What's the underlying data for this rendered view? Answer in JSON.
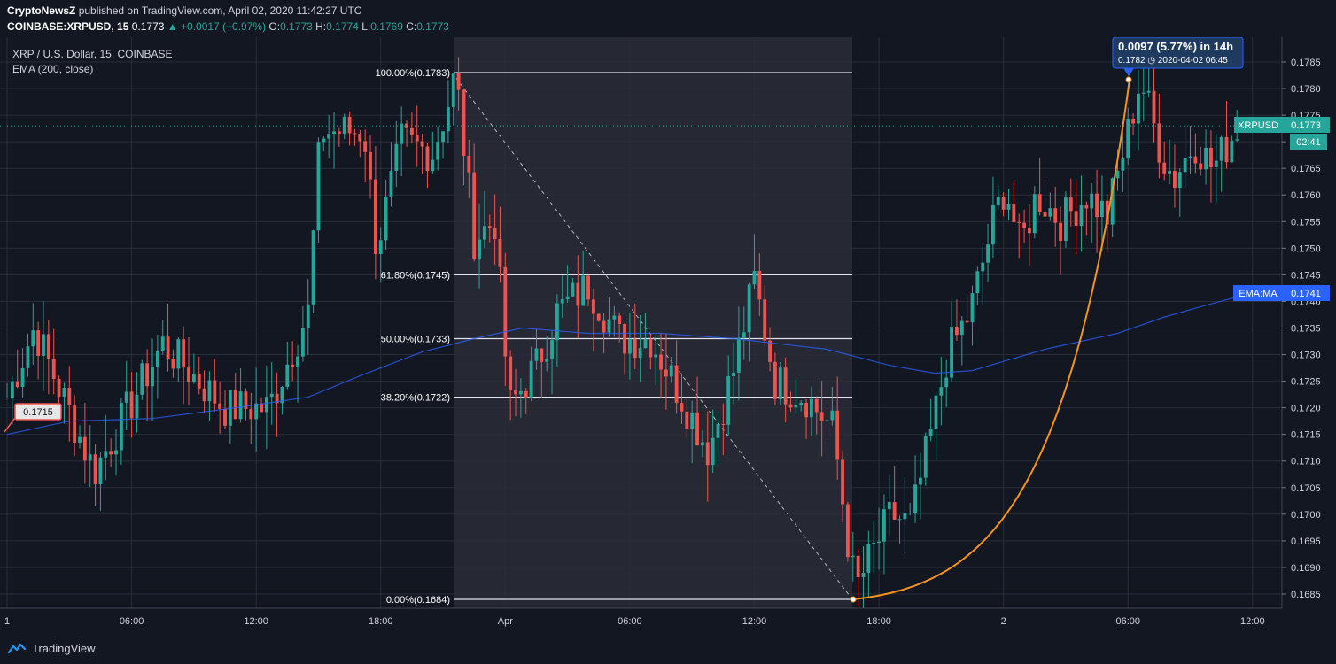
{
  "header": {
    "publisher": "CryptoNewsZ",
    "published_text": "published on TradingView.com, April 02, 2020 11:42:27 UTC",
    "symbol_line": "COINBASE:XRPUSD, 15",
    "last": "0.1773",
    "change": "+0.0017 (+0.97%)",
    "o_label": "O:",
    "o": "0.1773",
    "h_label": "H:",
    "h": "0.1774",
    "l_label": "L:",
    "l": "0.1769",
    "c_label": "C:",
    "c": "0.1773"
  },
  "legend": {
    "series_title": "XRP / U.S. Dollar, 15, COINBASE",
    "indicator": "EMA (200, close)"
  },
  "tags": {
    "xrpusd_label": "XRPUSD",
    "xrpusd_value": "0.1773",
    "countdown": "02:41",
    "ema_label": "EMA:MA",
    "ema_value": "0.1741",
    "left_price": "0.1715"
  },
  "measure": {
    "line1": "0.0097 (5.77%) in 14h",
    "line2": "0.1782 ◷ 2020-04-02  06:45"
  },
  "fib": {
    "levels": [
      {
        "label": "100.00%(0.1783)",
        "price": 0.1783
      },
      {
        "label": "61.80%(0.1745)",
        "price": 0.1745
      },
      {
        "label": "50.00%(0.1733)",
        "price": 0.1733
      },
      {
        "label": "38.20%(0.1722)",
        "price": 0.1722
      },
      {
        "label": "0.00%(0.1684)",
        "price": 0.1684
      }
    ]
  },
  "footer": {
    "logo_text": "TradingView"
  },
  "colors": {
    "background": "#131722",
    "grid": "#2a2e39",
    "up": "#26a69a",
    "down": "#ef5350",
    "ema": "#2962ff",
    "fib_line": "#e0e3eb",
    "curve": "#f7931a",
    "measure_bg": "#1e4a7a",
    "measure_border": "#2962ff"
  },
  "chart_data": {
    "type": "candlestick",
    "title": "XRP / U.S. Dollar, 15, COINBASE",
    "y_ticks": [
      0.1685,
      0.169,
      0.1695,
      0.17,
      0.1705,
      0.171,
      0.1715,
      0.172,
      0.1725,
      0.173,
      0.1735,
      0.174,
      0.1745,
      0.175,
      0.1755,
      0.176,
      0.1765,
      0.177,
      0.1775,
      0.178,
      0.1785
    ],
    "y_tick_labels": [
      "0.1685",
      "0.1690",
      "0.1695",
      "0.1700",
      "0.1705",
      "0.1710",
      "0.1715",
      "0.1720",
      "0.1725",
      "0.1730",
      "0.1735",
      "0.1740",
      "0.1745",
      "0.1750",
      "0.1755",
      "0.1760",
      "0.1765",
      "0.1770",
      "0.1775",
      "0.1780",
      "0.1785"
    ],
    "x_tick_labels": [
      "1",
      "06:00",
      "12:00",
      "18:00",
      "Apr",
      "06:00",
      "12:00",
      "18:00",
      "2",
      "06:00",
      "12:00"
    ],
    "x_tick_hours": [
      0,
      6,
      12,
      18,
      24,
      30,
      36,
      42,
      48,
      54,
      60
    ],
    "ylim": [
      0.16825,
      0.17895
    ],
    "xlim_hours": [
      -0.08,
      61.4
    ],
    "last_price": 0.1773,
    "ema_last": 0.1741,
    "candles_key_points": [
      {
        "hour": 0.0,
        "price": 0.1722
      },
      {
        "hour": 1.3,
        "price": 0.1735
      },
      {
        "hour": 4.2,
        "price": 0.1708
      },
      {
        "hour": 7.5,
        "price": 0.1732
      },
      {
        "hour": 10.5,
        "price": 0.172
      },
      {
        "hour": 12.6,
        "price": 0.172
      },
      {
        "hour": 14.5,
        "price": 0.1738
      },
      {
        "hour": 15.1,
        "price": 0.1772
      },
      {
        "hour": 17.2,
        "price": 0.1772
      },
      {
        "hour": 17.8,
        "price": 0.175
      },
      {
        "hour": 19.0,
        "price": 0.177
      },
      {
        "hour": 20.5,
        "price": 0.1768
      },
      {
        "hour": 21.3,
        "price": 0.1778
      },
      {
        "hour": 21.6,
        "price": 0.1783
      },
      {
        "hour": 22.5,
        "price": 0.1752
      },
      {
        "hour": 23.5,
        "price": 0.1755
      },
      {
        "hour": 24.2,
        "price": 0.172
      },
      {
        "hour": 25.5,
        "price": 0.1728
      },
      {
        "hour": 26.5,
        "price": 0.1738
      },
      {
        "hour": 28.0,
        "price": 0.1743
      },
      {
        "hour": 29.5,
        "price": 0.1733
      },
      {
        "hour": 31.0,
        "price": 0.1733
      },
      {
        "hour": 32.5,
        "price": 0.1722
      },
      {
        "hour": 33.8,
        "price": 0.1712
      },
      {
        "hour": 35.0,
        "price": 0.1727
      },
      {
        "hour": 36.0,
        "price": 0.1744
      },
      {
        "hour": 37.0,
        "price": 0.1725
      },
      {
        "hour": 38.5,
        "price": 0.1722
      },
      {
        "hour": 39.8,
        "price": 0.1716
      },
      {
        "hour": 40.6,
        "price": 0.1692
      },
      {
        "hour": 40.9,
        "price": 0.1686
      },
      {
        "hour": 41.6,
        "price": 0.1692
      },
      {
        "hour": 42.6,
        "price": 0.17
      },
      {
        "hour": 43.5,
        "price": 0.1698
      },
      {
        "hour": 44.5,
        "price": 0.1715
      },
      {
        "hour": 45.3,
        "price": 0.173
      },
      {
        "hour": 46.4,
        "price": 0.1738
      },
      {
        "hour": 47.5,
        "price": 0.1755
      },
      {
        "hour": 48.1,
        "price": 0.1762
      },
      {
        "hour": 48.8,
        "price": 0.175
      },
      {
        "hour": 49.6,
        "price": 0.176
      },
      {
        "hour": 50.8,
        "price": 0.1755
      },
      {
        "hour": 52.0,
        "price": 0.176
      },
      {
        "hour": 53.0,
        "price": 0.1756
      },
      {
        "hour": 53.9,
        "price": 0.177
      },
      {
        "hour": 54.6,
        "price": 0.1782
      },
      {
        "hour": 55.6,
        "price": 0.1768
      },
      {
        "hour": 56.2,
        "price": 0.1763
      },
      {
        "hour": 57.2,
        "price": 0.177
      },
      {
        "hour": 58.1,
        "price": 0.1765
      },
      {
        "hour": 59.3,
        "price": 0.1773
      }
    ],
    "ema_points": [
      {
        "hour": 0.0,
        "price": 0.1715
      },
      {
        "hour": 3.0,
        "price": 0.17175
      },
      {
        "hour": 7.0,
        "price": 0.1718
      },
      {
        "hour": 11.0,
        "price": 0.172
      },
      {
        "hour": 14.5,
        "price": 0.1722
      },
      {
        "hour": 17.0,
        "price": 0.1726
      },
      {
        "hour": 20.0,
        "price": 0.17305
      },
      {
        "hour": 22.5,
        "price": 0.1733
      },
      {
        "hour": 24.8,
        "price": 0.1735
      },
      {
        "hour": 28.0,
        "price": 0.1734
      },
      {
        "hour": 31.5,
        "price": 0.1734
      },
      {
        "hour": 35.0,
        "price": 0.1733
      },
      {
        "hour": 39.5,
        "price": 0.1731
      },
      {
        "hour": 42.5,
        "price": 0.1728
      },
      {
        "hour": 44.7,
        "price": 0.17265
      },
      {
        "hour": 46.5,
        "price": 0.1727
      },
      {
        "hour": 50.0,
        "price": 0.1731
      },
      {
        "hour": 53.5,
        "price": 0.1734
      },
      {
        "hour": 55.7,
        "price": 0.1737
      },
      {
        "hour": 57.5,
        "price": 0.1739
      },
      {
        "hour": 59.4,
        "price": 0.1741
      }
    ]
  }
}
